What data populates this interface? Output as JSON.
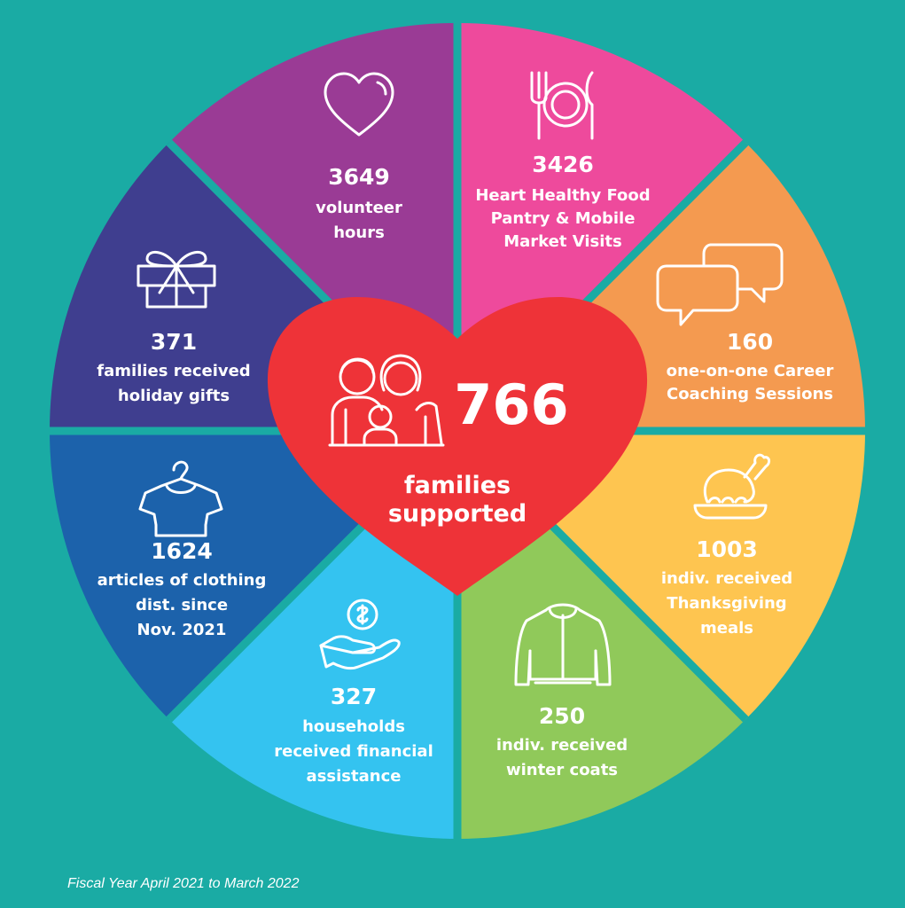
{
  "colors": {
    "background": "#1aaba4",
    "divider": "#1aaba4",
    "heart": "#ee3338"
  },
  "center": {
    "number": "766",
    "label_line1": "families",
    "label_line2": "supported",
    "icon": "family-icon"
  },
  "segments": [
    {
      "id": "food",
      "color": "#ee4a9c",
      "icon": "plate-cutlery-icon",
      "number": "3426",
      "lines": [
        "Heart Healthy Food",
        "Pantry & Mobile",
        "Market Visits"
      ]
    },
    {
      "id": "coaching",
      "color": "#f49a50",
      "icon": "chat-bubbles-icon",
      "number": "160",
      "lines": [
        "one-on-one Career",
        "Coaching Sessions"
      ]
    },
    {
      "id": "thanksgiving",
      "color": "#fec550",
      "icon": "turkey-icon",
      "number": "1003",
      "lines": [
        "indiv. received",
        "Thanksgiving",
        "meals"
      ]
    },
    {
      "id": "coats",
      "color": "#90c95a",
      "icon": "jacket-icon",
      "number": "250",
      "lines": [
        "indiv. received",
        "winter coats"
      ]
    },
    {
      "id": "financial",
      "color": "#34c3f0",
      "icon": "hand-coin-icon",
      "number": "327",
      "lines": [
        "households",
        "received financial",
        "assistance"
      ]
    },
    {
      "id": "clothing",
      "color": "#1c62ab",
      "icon": "shirt-hanger-icon",
      "number": "1624",
      "lines": [
        "articles of clothing",
        "dist. since",
        "Nov. 2021"
      ]
    },
    {
      "id": "gifts",
      "color": "#3f3e8f",
      "icon": "gift-box-icon",
      "number": "371",
      "lines": [
        "families received",
        "holiday gifts"
      ]
    },
    {
      "id": "volunteer",
      "color": "#9a3b95",
      "icon": "heart-outline-icon",
      "number": "3649",
      "lines": [
        "volunteer",
        "hours"
      ]
    }
  ],
  "footer": "Fiscal Year April 2021 to March 2022"
}
